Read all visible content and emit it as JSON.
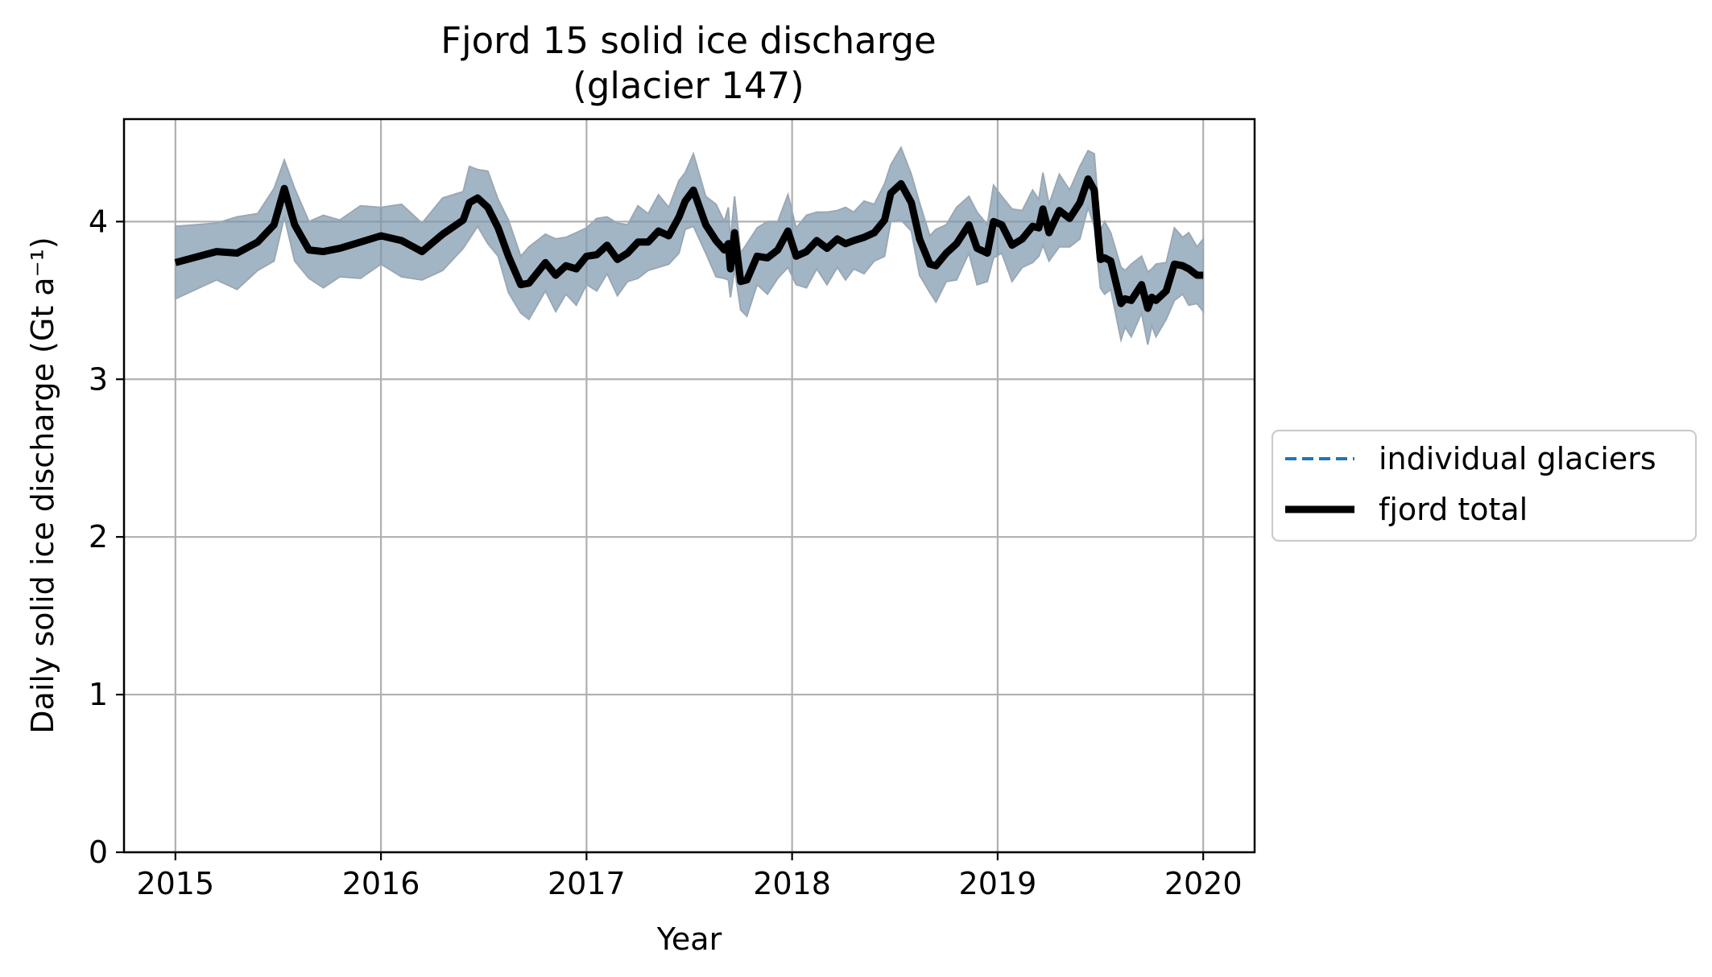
{
  "chart_data": {
    "type": "line",
    "title": "Fjord 15 solid ice discharge",
    "subtitle": "(glacier 147)",
    "xlabel": "Year",
    "ylabel": "Daily solid ice discharge (Gt a⁻¹)",
    "xlim": [
      2014.75,
      2020.25
    ],
    "ylim": [
      0,
      4.65
    ],
    "x_ticks": [
      2015,
      2016,
      2017,
      2018,
      2019,
      2020
    ],
    "x_tick_labels": [
      "2015",
      "2016",
      "2017",
      "2018",
      "2019",
      "2020"
    ],
    "y_ticks": [
      0,
      1,
      2,
      3,
      4
    ],
    "y_tick_labels": [
      "0",
      "1",
      "2",
      "3",
      "4"
    ],
    "grid": true,
    "legend": {
      "placement": "outside-right",
      "entries": [
        {
          "label": "individual glaciers",
          "style": "dashed",
          "color": "#1f77b4"
        },
        {
          "label": "fjord total",
          "style": "solid",
          "color": "#000000"
        }
      ]
    },
    "uncertainty_color": "#7b96ad",
    "uncertainty_halfwidth": 0.2,
    "series": [
      {
        "name": "fjord total",
        "color": "#000000",
        "x": [
          2015.0,
          2015.2,
          2015.3,
          2015.4,
          2015.48,
          2015.53,
          2015.58,
          2015.65,
          2015.72,
          2015.8,
          2015.9,
          2016.0,
          2016.1,
          2016.2,
          2016.3,
          2016.4,
          2016.43,
          2016.47,
          2016.52,
          2016.57,
          2016.62,
          2016.68,
          2016.72,
          2016.8,
          2016.85,
          2016.9,
          2016.95,
          2017.0,
          2017.05,
          2017.1,
          2017.15,
          2017.2,
          2017.25,
          2017.3,
          2017.35,
          2017.4,
          2017.45,
          2017.48,
          2017.52,
          2017.58,
          2017.63,
          2017.67,
          2017.69,
          2017.7,
          2017.72,
          2017.75,
          2017.78,
          2017.83,
          2017.88,
          2017.93,
          2017.98,
          2018.02,
          2018.07,
          2018.12,
          2018.17,
          2018.22,
          2018.26,
          2018.3,
          2018.35,
          2018.4,
          2018.45,
          2018.48,
          2018.53,
          2018.58,
          2018.62,
          2018.67,
          2018.7,
          2018.75,
          2018.8,
          2018.86,
          2018.9,
          2018.95,
          2018.98,
          2019.02,
          2019.07,
          2019.12,
          2019.17,
          2019.2,
          2019.22,
          2019.25,
          2019.3,
          2019.35,
          2019.4,
          2019.44,
          2019.47,
          2019.5,
          2019.52,
          2019.55,
          2019.6,
          2019.62,
          2019.65,
          2019.7,
          2019.73,
          2019.75,
          2019.77,
          2019.82,
          2019.86,
          2019.9,
          2019.93,
          2019.97,
          2020.0
        ],
        "values": [
          3.74,
          3.81,
          3.8,
          3.87,
          3.98,
          4.21,
          3.98,
          3.82,
          3.81,
          3.83,
          3.87,
          3.91,
          3.88,
          3.81,
          3.92,
          4.01,
          4.12,
          4.15,
          4.09,
          3.96,
          3.78,
          3.6,
          3.61,
          3.74,
          3.66,
          3.72,
          3.7,
          3.78,
          3.79,
          3.85,
          3.76,
          3.8,
          3.87,
          3.87,
          3.94,
          3.91,
          4.03,
          4.13,
          4.2,
          3.98,
          3.88,
          3.82,
          3.86,
          3.7,
          3.93,
          3.62,
          3.63,
          3.78,
          3.77,
          3.82,
          3.94,
          3.78,
          3.81,
          3.88,
          3.83,
          3.89,
          3.86,
          3.88,
          3.9,
          3.93,
          4.01,
          4.18,
          4.24,
          4.12,
          3.89,
          3.73,
          3.72,
          3.8,
          3.86,
          3.98,
          3.83,
          3.8,
          4.0,
          3.98,
          3.85,
          3.89,
          3.97,
          3.96,
          4.08,
          3.93,
          4.07,
          4.02,
          4.12,
          4.27,
          4.2,
          3.76,
          3.77,
          3.75,
          3.48,
          3.51,
          3.5,
          3.6,
          3.45,
          3.52,
          3.5,
          3.56,
          3.73,
          3.72,
          3.7,
          3.66,
          3.66
        ]
      }
    ]
  }
}
